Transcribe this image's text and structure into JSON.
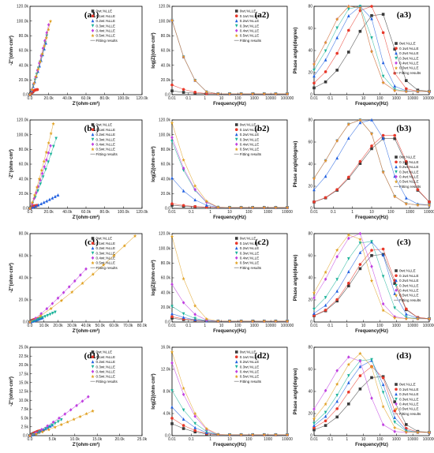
{
  "colors": [
    "#3a3a3a",
    "#e8382a",
    "#2060e0",
    "#1cb39a",
    "#c040e0",
    "#e0a020"
  ],
  "legend_series": [
    "0wt.%LLE",
    "0.1wt.%LLE",
    "0.2wt.%LLE",
    "0.3wt.%LLE",
    "0.4wt.%LLE",
    "0.5wt.%LLE"
  ],
  "legend_fit": "Fitting results",
  "chart_data": [
    {
      "id": "a1",
      "type": "scatter",
      "title": "(a1)",
      "xlabel": "Z'(ohm·cm²)",
      "ylabel": "-Z''(ohm·cm²)",
      "xlim": [
        0,
        120000
      ],
      "ylim": [
        0,
        120000
      ],
      "xticks": [
        "0.0",
        "20.0k",
        "40.0k",
        "60.0k",
        "80.0k",
        "100.0k",
        "120.0k"
      ],
      "yticks": [
        "0.0",
        "20.0k",
        "40.0k",
        "60.0k",
        "80.0k",
        "100.0k",
        "120.0k"
      ],
      "series_end": [
        [
          3000,
          4000
        ],
        [
          8000,
          7000
        ],
        [
          17000,
          70000
        ],
        [
          18000,
          80000
        ],
        [
          20000,
          95000
        ],
        [
          22000,
          100000
        ]
      ]
    },
    {
      "id": "a2",
      "type": "line",
      "title": "(a2)",
      "xlabel": "Frequency(Hz)",
      "ylabel": "log|Z|(ohm·cm²)",
      "xscale": "log",
      "xlim": [
        0.01,
        100000
      ],
      "ylim": [
        0,
        120000
      ],
      "xticks": [
        "0.01",
        "0.1",
        "1",
        "10",
        "100",
        "1000",
        "10000",
        "100000"
      ],
      "yticks": [
        "0.0",
        "20.0k",
        "40.0k",
        "60.0k",
        "80.0k",
        "100.0k",
        "120.0k"
      ],
      "low_freq_values": [
        4000,
        12000,
        100000,
        100000,
        100000,
        100000
      ]
    },
    {
      "id": "a3",
      "type": "line",
      "title": "(a3)",
      "xlabel": "Frequency(Hz)",
      "ylabel": "Phase angle(degree)",
      "xscale": "log",
      "xlim": [
        0.01,
        100000
      ],
      "ylim": [
        0,
        80
      ],
      "xticks": [
        "0.01",
        "0.1",
        "1",
        "10",
        "100",
        "1000",
        "10000",
        "100000"
      ],
      "yticks": [
        "0",
        "20",
        "40",
        "60",
        "80"
      ],
      "peak": [
        [
          100,
          72
        ],
        [
          30,
          80
        ],
        [
          10,
          80
        ],
        [
          5,
          80
        ],
        [
          3,
          82
        ],
        [
          3,
          82
        ]
      ]
    },
    {
      "id": "b1",
      "type": "scatter",
      "title": "(b1)",
      "xlabel": "Z'(ohm·cm²)",
      "ylabel": "-Z''(ohm·cm²)",
      "xlim": [
        0,
        120000
      ],
      "ylim": [
        0,
        120000
      ],
      "xticks": [
        "0.0",
        "20.0k",
        "40.0k",
        "60.0k",
        "80.0k",
        "100.0k",
        "120.0k"
      ],
      "yticks": [
        "0.0",
        "20.0k",
        "40.0k",
        "60.0k",
        "80.0k",
        "100.0k",
        "120.0k"
      ],
      "series_end": [
        [
          5000,
          3000
        ],
        [
          8000,
          4000
        ],
        [
          30000,
          18000
        ],
        [
          28000,
          95000
        ],
        [
          22000,
          85000
        ],
        [
          25000,
          115000
        ]
      ]
    },
    {
      "id": "b2",
      "type": "line",
      "title": "(b2)",
      "xlabel": "Frequency(Hz)",
      "ylabel": "log|Z|(ohm·cm²)",
      "xscale": "log",
      "xlim": [
        0.01,
        10000
      ],
      "ylim": [
        0,
        120000
      ],
      "xticks": [
        "0.01",
        "0.1",
        "1",
        "10",
        "100",
        "1000",
        "10000"
      ],
      "yticks": [
        "0.0",
        "20.0k",
        "40.0k",
        "60.0k",
        "80.0k",
        "100.0k",
        "120.0k"
      ],
      "low_freq_values": [
        3000,
        5000,
        40000,
        90000,
        95000,
        115000
      ]
    },
    {
      "id": "b3",
      "type": "line",
      "title": "(b3)",
      "xlabel": "Frequency(Hz)",
      "ylabel": "Phase angle(degree)",
      "xscale": "log",
      "xlim": [
        0.01,
        10000
      ],
      "ylim": [
        0,
        80
      ],
      "xticks": [
        "0.01",
        "0.1",
        "1",
        "10",
        "100",
        "1000",
        "10000"
      ],
      "yticks": [
        "0",
        "20",
        "40",
        "60",
        "80"
      ],
      "peak": [
        [
          100,
          62
        ],
        [
          100,
          65
        ],
        [
          10,
          80
        ],
        [
          3,
          80
        ],
        [
          3,
          80
        ],
        [
          3,
          80
        ]
      ]
    },
    {
      "id": "c1",
      "type": "scatter",
      "title": "(c1)",
      "xlabel": "Z'(ohm·cm²)",
      "ylabel": "-Z''(ohm·cm²)",
      "xlim": [
        0,
        80000
      ],
      "ylim": [
        0,
        80000
      ],
      "xticks": [
        "0.0",
        "10.0k",
        "20.0k",
        "30.0k",
        "40.0k",
        "50.0k",
        "60.0k",
        "70.0k",
        "80.0k"
      ],
      "yticks": [
        "0.0",
        "20.0k",
        "40.0k",
        "60.0k",
        "80.0k"
      ],
      "series_end": [
        [
          4000,
          2000
        ],
        [
          6000,
          3000
        ],
        [
          9000,
          4000
        ],
        [
          18000,
          9000
        ],
        [
          40000,
          48000
        ],
        [
          75000,
          78000
        ]
      ]
    },
    {
      "id": "c2",
      "type": "line",
      "title": "(c2)",
      "xlabel": "Frequency(Hz)",
      "ylabel": "log|Z|(ohm·cm²)",
      "xscale": "log",
      "xlim": [
        0.01,
        100000
      ],
      "ylim": [
        0,
        120000
      ],
      "xticks": [
        "0.01",
        "0.1",
        "1",
        "10",
        "100",
        "1000",
        "10000",
        "100000"
      ],
      "yticks": [
        "0.0",
        "20.0k",
        "40.0k",
        "60.0k",
        "80.0k",
        "100.0k",
        "120.0k"
      ],
      "low_freq_values": [
        4000,
        6000,
        10000,
        20000,
        50000,
        115000
      ]
    },
    {
      "id": "c3",
      "type": "line",
      "title": "(c3)",
      "xlabel": "Frequency(Hz)",
      "ylabel": "Phase angle(degree)",
      "xscale": "log",
      "xlim": [
        0.01,
        100000
      ],
      "ylim": [
        0,
        80
      ],
      "xticks": [
        "0.01",
        "0.1",
        "1",
        "10",
        "100",
        "1000",
        "10000",
        "100000"
      ],
      "yticks": [
        "0",
        "20",
        "40",
        "60",
        "80"
      ],
      "peak": [
        [
          100,
          60
        ],
        [
          100,
          65
        ],
        [
          50,
          70
        ],
        [
          20,
          72
        ],
        [
          5,
          78
        ],
        [
          3,
          78
        ]
      ]
    },
    {
      "id": "d1",
      "type": "scatter",
      "title": "(d1)",
      "xlabel": "Z'(ohm·cm²)",
      "ylabel": "-Z''(ohm·cm²)",
      "xlim": [
        0,
        25000
      ],
      "ylim": [
        0,
        25000
      ],
      "xticks": [
        "0.0",
        "5.0k",
        "10.0k",
        "15.0k",
        "20.0k",
        "25.0k"
      ],
      "yticks": [
        "0.0",
        "2.5k",
        "5.0k",
        "7.5k",
        "10.0k",
        "12.5k",
        "15.0k",
        "17.5k",
        "20.0k",
        "22.5k",
        "25.0k"
      ],
      "series_end": [
        [
          2000,
          1000
        ],
        [
          3000,
          1500
        ],
        [
          5000,
          3000
        ],
        [
          7000,
          4500
        ],
        [
          13000,
          11000
        ],
        [
          14000,
          7000
        ]
      ]
    },
    {
      "id": "d2",
      "type": "line",
      "title": "(d2)",
      "xlabel": "Frequency(Hz)",
      "ylabel": "log|Z|(ohm·cm²)",
      "xscale": "log",
      "xlim": [
        0.01,
        10000
      ],
      "ylim": [
        0,
        16000
      ],
      "xticks": [
        "0.01",
        "0.1",
        "1",
        "10",
        "100",
        "1000",
        "10000"
      ],
      "yticks": [
        "0.0",
        "4.0k",
        "8.0k",
        "12.0k",
        "16.0k"
      ],
      "low_freq_values": [
        2000,
        3000,
        5000,
        8000,
        13000,
        15000
      ]
    },
    {
      "id": "d3",
      "type": "line",
      "title": "(d3)",
      "xlabel": "Frequency(Hz)",
      "ylabel": "Phase angle(degree)",
      "xscale": "log",
      "xlim": [
        0.01,
        100000
      ],
      "ylim": [
        0,
        80
      ],
      "xticks": [
        "0.01",
        "0.1",
        "1",
        "10",
        "100",
        "1000",
        "10000",
        "100000"
      ],
      "yticks": [
        "0",
        "20",
        "40",
        "60",
        "80"
      ],
      "peak": [
        [
          100,
          52
        ],
        [
          50,
          60
        ],
        [
          30,
          65
        ],
        [
          20,
          68
        ],
        [
          3,
          70
        ],
        [
          10,
          72
        ]
      ]
    }
  ]
}
